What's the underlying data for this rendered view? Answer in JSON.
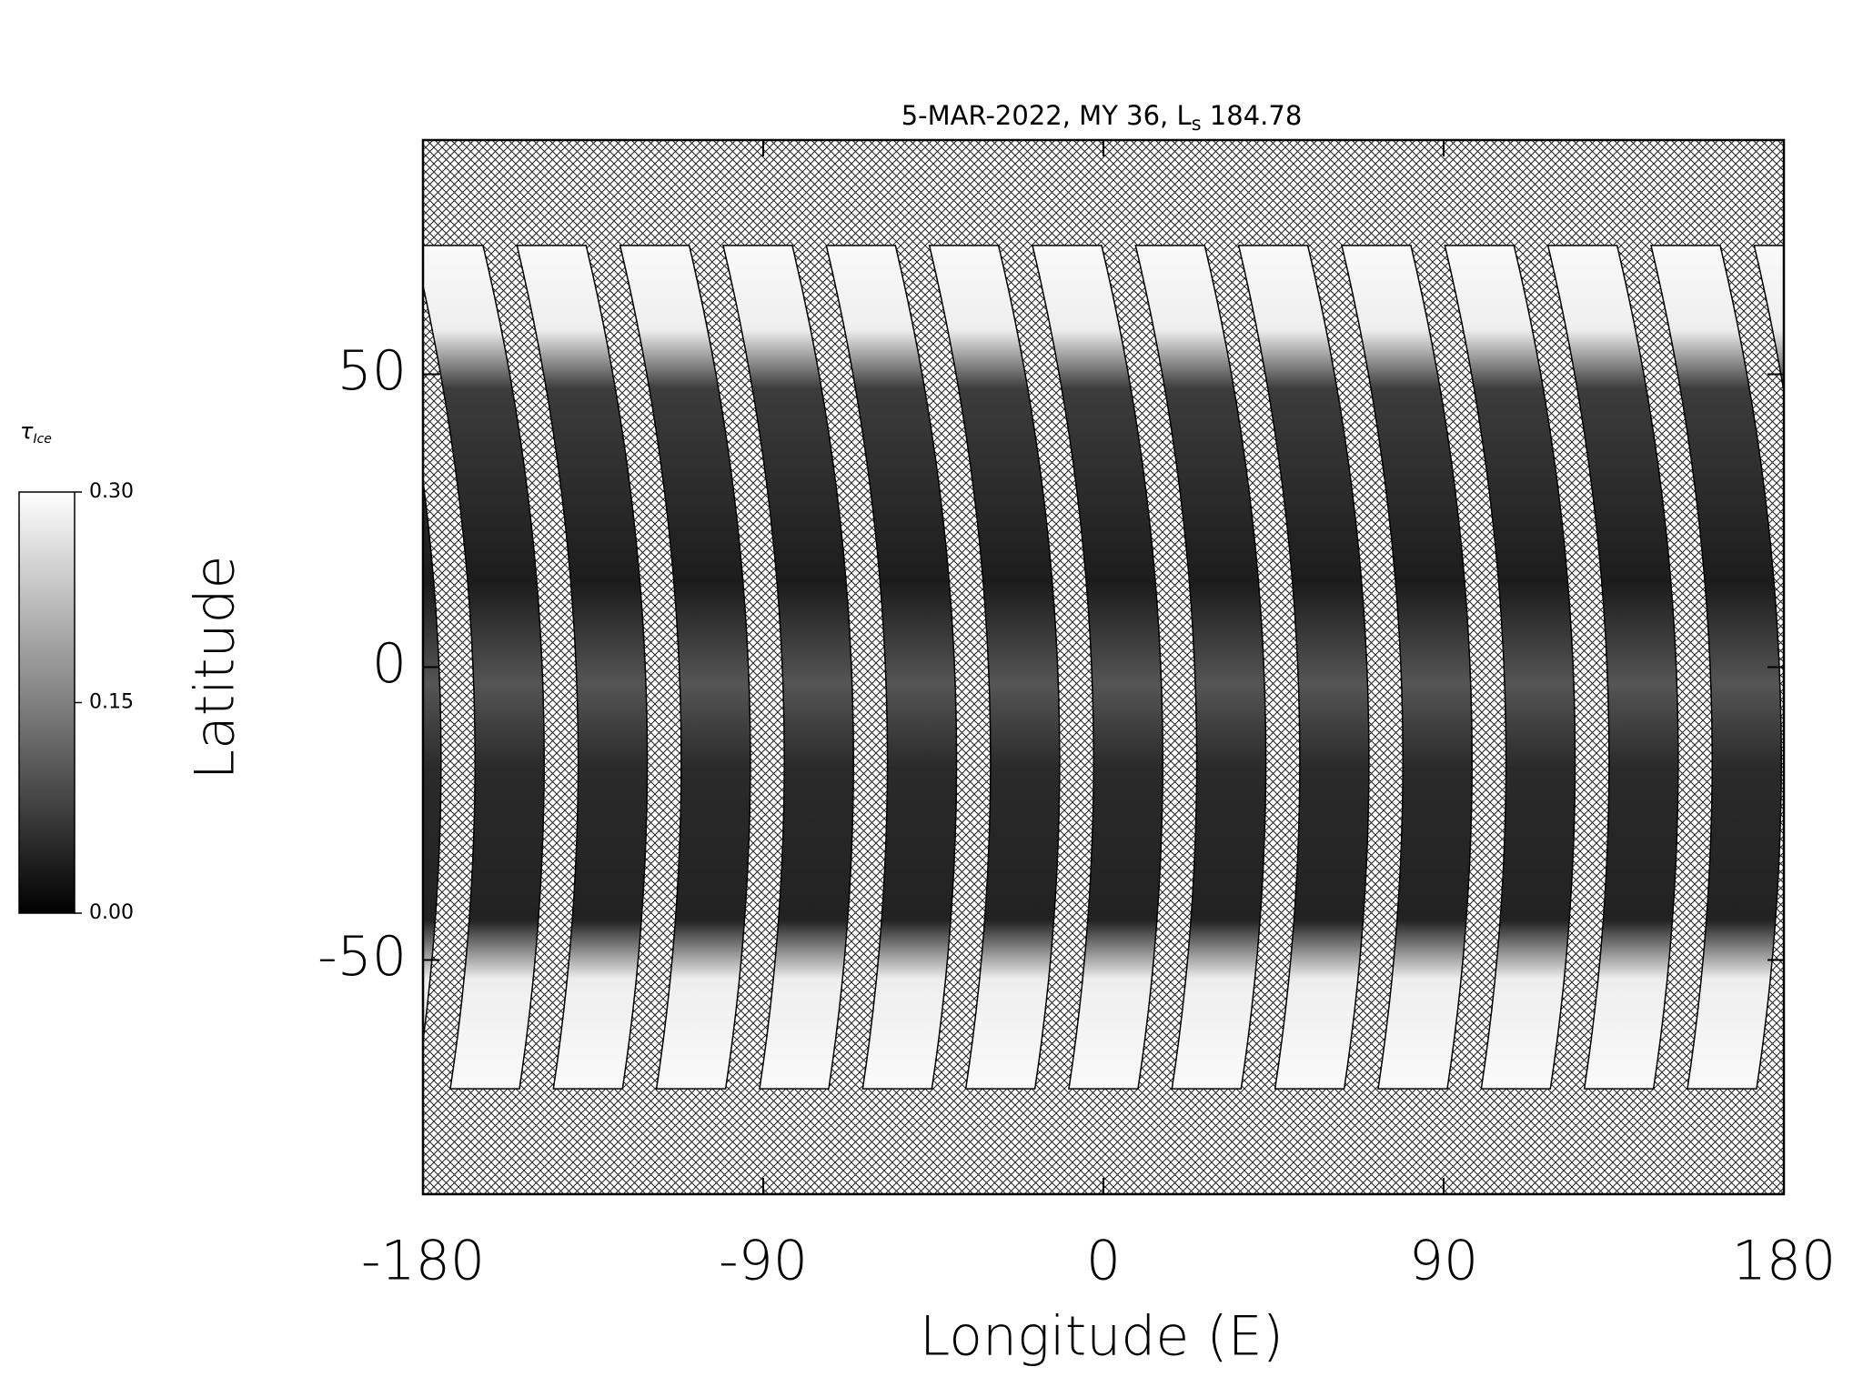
{
  "chart_data": {
    "type": "map",
    "title": {
      "text": "5-MAR-2022, MY 36,  L",
      "subscript": "s",
      "value": "184.78"
    },
    "x_label": "Longitude (E)",
    "y_label": "Latitude",
    "xlim": [
      -180,
      180
    ],
    "xticks": [
      -180,
      -90,
      0,
      90,
      180
    ],
    "ylim": [
      -90,
      90
    ],
    "yticks": [
      -50,
      0,
      50
    ],
    "colorbar": {
      "label": "τ",
      "label_subscript": "Ice",
      "lim": [
        0,
        0.3
      ],
      "ticks": [
        {
          "value": 0.3,
          "label": "0.30"
        },
        {
          "value": 0.15,
          "label": "0.15"
        },
        {
          "value": 0,
          "label": "0.00"
        }
      ],
      "colors": [
        "#000000",
        "#ffffff"
      ]
    }
  }
}
